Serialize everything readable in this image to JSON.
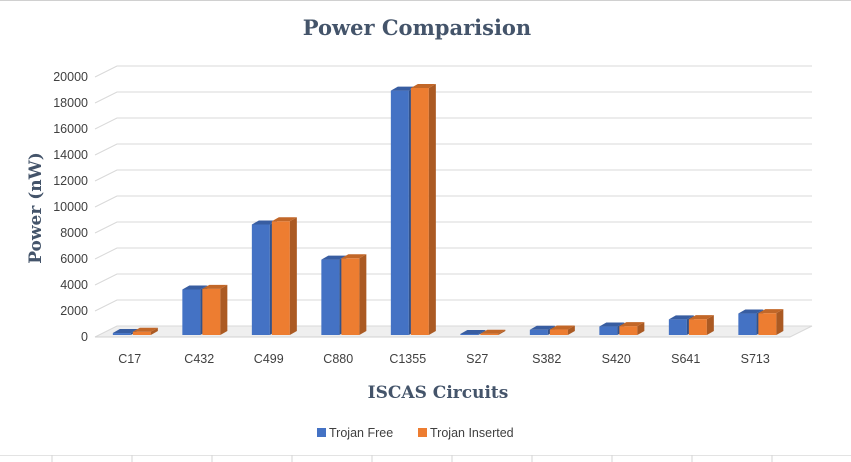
{
  "chart_data": {
    "type": "bar",
    "style": "3d-clustered-column",
    "title": "Power Comparision",
    "xlabel": "ISCAS Circuits",
    "ylabel": "Power (nW)",
    "ylim": [
      0,
      20000
    ],
    "yticks": [
      0,
      2000,
      4000,
      6000,
      8000,
      10000,
      12000,
      14000,
      16000,
      18000,
      20000
    ],
    "grid": true,
    "legend_position": "bottom",
    "categories": [
      "C17",
      "C432",
      "C499",
      "C880",
      "C1355",
      "S27",
      "S382",
      "S420",
      "S641",
      "S713"
    ],
    "series": [
      {
        "name": "Trojan Free",
        "color": "#4472c4",
        "values": [
          150,
          3500,
          8500,
          5800,
          18800,
          80,
          400,
          650,
          1200,
          1650
        ]
      },
      {
        "name": "Trojan Inserted",
        "color": "#ed7d31",
        "values": [
          250,
          3550,
          8750,
          5900,
          19000,
          100,
          420,
          680,
          1220,
          1680
        ]
      }
    ]
  }
}
